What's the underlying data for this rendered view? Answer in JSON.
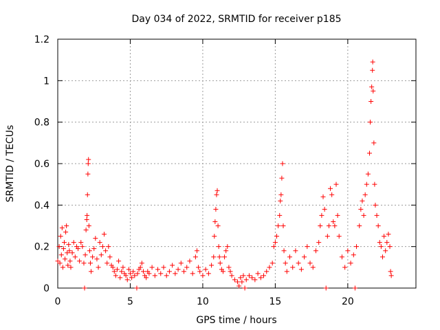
{
  "chart_data": {
    "type": "scatter",
    "title": "Day 034 of 2022, SRMTID for receiver p185",
    "xlabel": "GPS time / hours",
    "ylabel": "SRMTID / TECUs",
    "xlim": [
      0,
      24.7
    ],
    "ylim": [
      0,
      1.2
    ],
    "x_ticks": [
      0,
      5,
      10,
      15,
      20
    ],
    "y_ticks": [
      0,
      0.2,
      0.4,
      0.6,
      0.8,
      1,
      1.2
    ],
    "y_tick_labels": [
      "0",
      "0.2",
      "0.4",
      "0.6",
      "0.8",
      "1",
      "1.2"
    ],
    "grid": true,
    "marker": "+",
    "color": "#ff0000",
    "series": [
      {
        "name": "SRMTID",
        "points": [
          [
            0.0,
            0.13
          ],
          [
            0.1,
            0.2
          ],
          [
            0.15,
            0.12
          ],
          [
            0.2,
            0.25
          ],
          [
            0.25,
            0.16
          ],
          [
            0.3,
            0.29
          ],
          [
            0.35,
            0.1
          ],
          [
            0.4,
            0.19
          ],
          [
            0.45,
            0.22
          ],
          [
            0.5,
            0.14
          ],
          [
            0.55,
            0.27
          ],
          [
            0.6,
            0.3
          ],
          [
            0.65,
            0.17
          ],
          [
            0.7,
            0.11
          ],
          [
            0.75,
            0.21
          ],
          [
            0.8,
            0.18
          ],
          [
            0.85,
            0.13
          ],
          [
            0.9,
            0.1
          ],
          [
            1.0,
            0.17
          ],
          [
            1.1,
            0.22
          ],
          [
            1.2,
            0.15
          ],
          [
            1.3,
            0.2
          ],
          [
            1.4,
            0.19
          ],
          [
            1.5,
            0.13
          ],
          [
            1.6,
            0.22
          ],
          [
            1.7,
            0.2
          ],
          [
            1.8,
            0.12
          ],
          [
            1.85,
            0.0
          ],
          [
            1.9,
            0.16
          ],
          [
            1.95,
            0.28
          ],
          [
            2.0,
            0.33
          ],
          [
            2.02,
            0.35
          ],
          [
            2.05,
            0.45
          ],
          [
            2.08,
            0.55
          ],
          [
            2.1,
            0.6
          ],
          [
            2.12,
            0.62
          ],
          [
            2.15,
            0.3
          ],
          [
            2.2,
            0.18
          ],
          [
            2.25,
            0.12
          ],
          [
            2.3,
            0.08
          ],
          [
            2.4,
            0.15
          ],
          [
            2.5,
            0.19
          ],
          [
            2.6,
            0.24
          ],
          [
            2.7,
            0.14
          ],
          [
            2.8,
            0.1
          ],
          [
            2.9,
            0.22
          ],
          [
            3.0,
            0.16
          ],
          [
            3.1,
            0.2
          ],
          [
            3.2,
            0.26
          ],
          [
            3.3,
            0.18
          ],
          [
            3.4,
            0.12
          ],
          [
            3.5,
            0.2
          ],
          [
            3.6,
            0.15
          ],
          [
            3.7,
            0.11
          ],
          [
            3.8,
            0.1
          ],
          [
            3.9,
            0.08
          ],
          [
            4.0,
            0.06
          ],
          [
            4.1,
            0.09
          ],
          [
            4.2,
            0.13
          ],
          [
            4.3,
            0.05
          ],
          [
            4.4,
            0.08
          ],
          [
            4.5,
            0.1
          ],
          [
            4.6,
            0.07
          ],
          [
            4.7,
            0.06
          ],
          [
            4.8,
            0.04
          ],
          [
            4.9,
            0.09
          ],
          [
            5.0,
            0.07
          ],
          [
            5.1,
            0.05
          ],
          [
            5.2,
            0.08
          ],
          [
            5.3,
            0.06
          ],
          [
            5.45,
            0.0
          ],
          [
            5.5,
            0.07
          ],
          [
            5.6,
            0.09
          ],
          [
            5.7,
            0.1
          ],
          [
            5.8,
            0.12
          ],
          [
            5.9,
            0.08
          ],
          [
            6.0,
            0.06
          ],
          [
            6.1,
            0.05
          ],
          [
            6.2,
            0.08
          ],
          [
            6.3,
            0.07
          ],
          [
            6.5,
            0.1
          ],
          [
            6.7,
            0.06
          ],
          [
            6.9,
            0.09
          ],
          [
            7.1,
            0.07
          ],
          [
            7.3,
            0.1
          ],
          [
            7.5,
            0.06
          ],
          [
            7.7,
            0.08
          ],
          [
            7.9,
            0.11
          ],
          [
            8.1,
            0.07
          ],
          [
            8.3,
            0.09
          ],
          [
            8.5,
            0.12
          ],
          [
            8.7,
            0.08
          ],
          [
            8.9,
            0.1
          ],
          [
            9.1,
            0.13
          ],
          [
            9.3,
            0.07
          ],
          [
            9.5,
            0.15
          ],
          [
            9.6,
            0.18
          ],
          [
            9.7,
            0.1
          ],
          [
            9.8,
            0.08
          ],
          [
            10.0,
            0.06
          ],
          [
            10.2,
            0.09
          ],
          [
            10.4,
            0.07
          ],
          [
            10.6,
            0.11
          ],
          [
            10.75,
            0.15
          ],
          [
            10.8,
            0.25
          ],
          [
            10.85,
            0.32
          ],
          [
            10.9,
            0.38
          ],
          [
            10.95,
            0.45
          ],
          [
            11.0,
            0.47
          ],
          [
            11.05,
            0.3
          ],
          [
            11.1,
            0.2
          ],
          [
            11.15,
            0.15
          ],
          [
            11.2,
            0.12
          ],
          [
            11.3,
            0.09
          ],
          [
            11.4,
            0.08
          ],
          [
            11.5,
            0.15
          ],
          [
            11.6,
            0.18
          ],
          [
            11.7,
            0.2
          ],
          [
            11.8,
            0.1
          ],
          [
            11.9,
            0.08
          ],
          [
            12.0,
            0.06
          ],
          [
            12.2,
            0.04
          ],
          [
            12.4,
            0.03
          ],
          [
            12.5,
            0.01
          ],
          [
            12.6,
            0.05
          ],
          [
            12.7,
            0.03
          ],
          [
            12.8,
            0.06
          ],
          [
            12.9,
            0.0
          ],
          [
            13.0,
            0.04
          ],
          [
            13.2,
            0.06
          ],
          [
            13.4,
            0.05
          ],
          [
            13.6,
            0.04
          ],
          [
            13.8,
            0.07
          ],
          [
            14.0,
            0.05
          ],
          [
            14.2,
            0.06
          ],
          [
            14.4,
            0.08
          ],
          [
            14.6,
            0.1
          ],
          [
            14.8,
            0.12
          ],
          [
            14.9,
            0.2
          ],
          [
            15.0,
            0.22
          ],
          [
            15.1,
            0.25
          ],
          [
            15.2,
            0.3
          ],
          [
            15.3,
            0.35
          ],
          [
            15.35,
            0.42
          ],
          [
            15.4,
            0.45
          ],
          [
            15.45,
            0.53
          ],
          [
            15.5,
            0.6
          ],
          [
            15.55,
            0.3
          ],
          [
            15.6,
            0.18
          ],
          [
            15.7,
            0.12
          ],
          [
            15.8,
            0.08
          ],
          [
            16.0,
            0.15
          ],
          [
            16.2,
            0.1
          ],
          [
            16.4,
            0.18
          ],
          [
            16.6,
            0.12
          ],
          [
            16.8,
            0.09
          ],
          [
            17.0,
            0.15
          ],
          [
            17.2,
            0.2
          ],
          [
            17.4,
            0.12
          ],
          [
            17.6,
            0.1
          ],
          [
            17.8,
            0.18
          ],
          [
            18.0,
            0.22
          ],
          [
            18.1,
            0.3
          ],
          [
            18.2,
            0.35
          ],
          [
            18.3,
            0.44
          ],
          [
            18.4,
            0.38
          ],
          [
            18.5,
            0.0
          ],
          [
            18.6,
            0.25
          ],
          [
            18.7,
            0.3
          ],
          [
            18.8,
            0.48
          ],
          [
            18.9,
            0.45
          ],
          [
            19.0,
            0.32
          ],
          [
            19.1,
            0.3
          ],
          [
            19.2,
            0.5
          ],
          [
            19.3,
            0.35
          ],
          [
            19.4,
            0.25
          ],
          [
            19.6,
            0.15
          ],
          [
            19.8,
            0.1
          ],
          [
            20.0,
            0.18
          ],
          [
            20.2,
            0.12
          ],
          [
            20.4,
            0.16
          ],
          [
            20.5,
            0.0
          ],
          [
            20.6,
            0.2
          ],
          [
            20.8,
            0.3
          ],
          [
            20.9,
            0.38
          ],
          [
            21.0,
            0.42
          ],
          [
            21.1,
            0.35
          ],
          [
            21.2,
            0.45
          ],
          [
            21.3,
            0.5
          ],
          [
            21.4,
            0.55
          ],
          [
            21.5,
            0.65
          ],
          [
            21.55,
            0.8
          ],
          [
            21.6,
            0.9
          ],
          [
            21.65,
            0.97
          ],
          [
            21.7,
            1.05
          ],
          [
            21.72,
            1.09
          ],
          [
            21.75,
            0.95
          ],
          [
            21.8,
            0.7
          ],
          [
            21.85,
            0.5
          ],
          [
            21.9,
            0.4
          ],
          [
            22.0,
            0.35
          ],
          [
            22.1,
            0.3
          ],
          [
            22.2,
            0.22
          ],
          [
            22.3,
            0.2
          ],
          [
            22.4,
            0.15
          ],
          [
            22.5,
            0.25
          ],
          [
            22.6,
            0.18
          ],
          [
            22.7,
            0.22
          ],
          [
            22.8,
            0.26
          ],
          [
            22.9,
            0.2
          ],
          [
            22.95,
            0.08
          ],
          [
            23.0,
            0.06
          ]
        ]
      }
    ]
  }
}
